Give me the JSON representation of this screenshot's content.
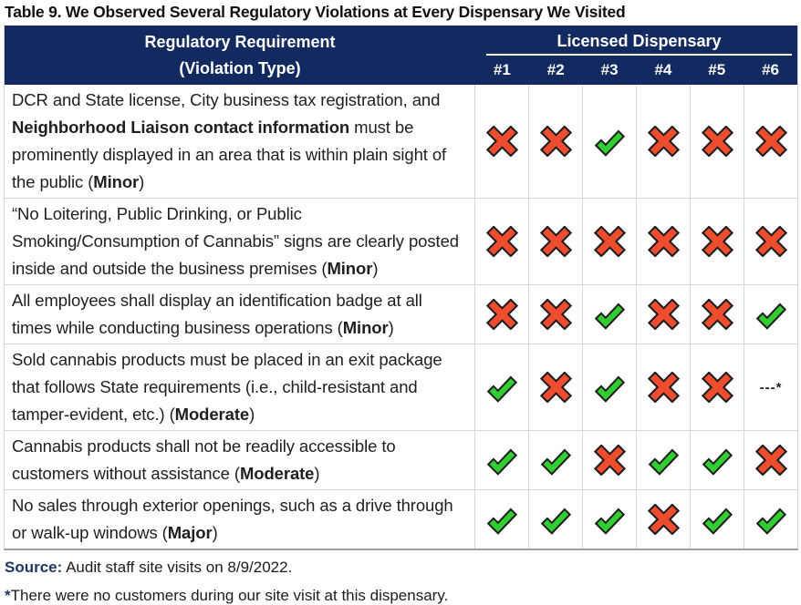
{
  "title": "Table 9. We Observed Several Regulatory Violations at Every Dispensary We Visited",
  "header": {
    "requirement_line1": "Regulatory Requirement",
    "requirement_line2": "(Violation Type)",
    "dispensary_group_label": "Licensed Dispensary",
    "dispensary_columns": [
      "#1",
      "#2",
      "#3",
      "#4",
      "#5",
      "#6"
    ]
  },
  "rows": [
    {
      "requirement": [
        {
          "text": "DCR and State license, City business tax registration, and ",
          "bold": false
        },
        {
          "text": "Neighborhood Liaison contact information",
          "bold": true
        },
        {
          "text": " must be prominently displayed in an area that is within plain sight of the public (",
          "bold": false
        },
        {
          "text": "Minor",
          "bold": true
        },
        {
          "text": ")",
          "bold": false
        }
      ],
      "marks": [
        "x",
        "x",
        "check",
        "x",
        "x",
        "x"
      ]
    },
    {
      "requirement": [
        {
          "text": "“No Loitering, Public Drinking, or Public Smoking/Consumption of Cannabis” signs are clearly posted inside and outside the business premises (",
          "bold": false
        },
        {
          "text": "Minor",
          "bold": true
        },
        {
          "text": ")",
          "bold": false
        }
      ],
      "marks": [
        "x",
        "x",
        "x",
        "x",
        "x",
        "x"
      ]
    },
    {
      "requirement": [
        {
          "text": "All employees shall display an identification badge at all times while conducting business operations (",
          "bold": false
        },
        {
          "text": "Minor",
          "bold": true
        },
        {
          "text": ")",
          "bold": false
        }
      ],
      "marks": [
        "x",
        "x",
        "check",
        "x",
        "x",
        "check"
      ]
    },
    {
      "requirement": [
        {
          "text": "Sold cannabis products must be placed in an exit package that follows State requirements (i.e., child-resistant and tamper-evident, etc.) (",
          "bold": false
        },
        {
          "text": "Moderate",
          "bold": true
        },
        {
          "text": ")",
          "bold": false
        }
      ],
      "marks": [
        "check",
        "x",
        "check",
        "x",
        "x",
        "dash"
      ]
    },
    {
      "requirement": [
        {
          "text": "Cannabis products shall not be readily accessible to customers without assistance (",
          "bold": false
        },
        {
          "text": "Moderate",
          "bold": true
        },
        {
          "text": ")",
          "bold": false
        }
      ],
      "marks": [
        "check",
        "check",
        "x",
        "check",
        "check",
        "x"
      ]
    },
    {
      "requirement": [
        {
          "text": "No sales through exterior openings, such as a drive through or walk-up windows (",
          "bold": false
        },
        {
          "text": "Major",
          "bold": true
        },
        {
          "text": ")",
          "bold": false
        }
      ],
      "marks": [
        "check",
        "check",
        "check",
        "x",
        "check",
        "check"
      ]
    }
  ],
  "marks_legend": {
    "x": "violation-observed",
    "check": "no-violation-observed",
    "dash_label": "---*"
  },
  "footer": {
    "source_label": "Source:",
    "source_text": " Audit staff site visits on 8/9/2022.",
    "note_marker": "*",
    "note_text": "There were no customers during our site visit at this dispensary."
  },
  "colors": {
    "header_bg": "#132a60",
    "navy_text": "#1f3864",
    "x_fill": "#ee4c2e",
    "check_fill": "#31cd31",
    "icon_outline": "#1c1c1c",
    "grid_line": "#d6d6d6",
    "body_text": "#1f1f1f"
  }
}
